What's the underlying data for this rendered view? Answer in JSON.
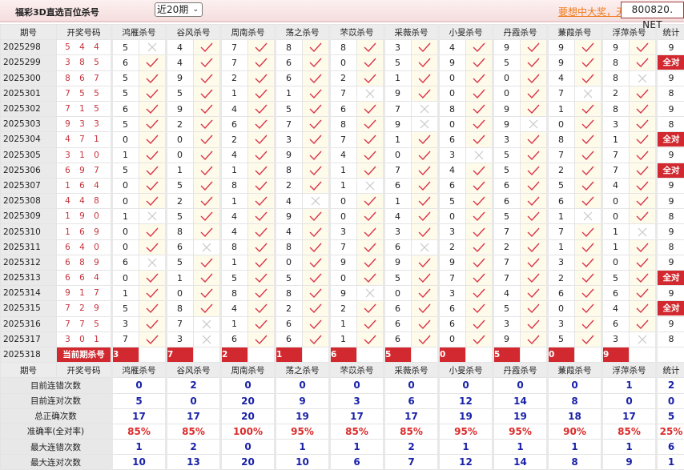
{
  "header": {
    "title": "福彩3D直选百位杀号",
    "period_select": "近20期",
    "promo_link": "要想中大奖，天",
    "brand": "800820. NET"
  },
  "columns": {
    "period": "期号",
    "draw": "开奖号码",
    "killers": [
      "鸿雁杀号",
      "谷风杀号",
      "周南杀号",
      "荡之杀号",
      "芣苡杀号",
      "采薇杀号",
      "小旻杀号",
      "丹霞杀号",
      "蒹葭杀号",
      "浮萍杀号"
    ],
    "stat": "统计"
  },
  "icons": {
    "correct": "check-icon",
    "wrong": "x-icon"
  },
  "colors": {
    "check": "#d9344a",
    "wrong": "#c8c8c8",
    "badge": "#d1292f",
    "stat_value": "#1a22a8",
    "percent": "#dc2a2a"
  },
  "rows": [
    {
      "period": "2025298",
      "draw": "5 4 4",
      "kills": [
        5,
        4,
        7,
        8,
        8,
        3,
        4,
        9,
        9,
        9
      ],
      "ok": [
        false,
        true,
        true,
        true,
        true,
        true,
        true,
        true,
        true,
        true
      ],
      "stat": "9"
    },
    {
      "period": "2025299",
      "draw": "3 8 5",
      "kills": [
        6,
        4,
        7,
        6,
        0,
        5,
        9,
        5,
        9,
        8
      ],
      "ok": [
        true,
        true,
        true,
        true,
        true,
        true,
        true,
        true,
        true,
        true
      ],
      "stat": "全对"
    },
    {
      "period": "2025300",
      "draw": "8 6 7",
      "kills": [
        5,
        9,
        2,
        6,
        2,
        1,
        0,
        0,
        4,
        8
      ],
      "ok": [
        true,
        true,
        true,
        true,
        true,
        true,
        true,
        true,
        true,
        false
      ],
      "stat": "9"
    },
    {
      "period": "2025301",
      "draw": "7 5 5",
      "kills": [
        5,
        5,
        1,
        1,
        7,
        9,
        0,
        0,
        7,
        2
      ],
      "ok": [
        true,
        true,
        true,
        true,
        false,
        true,
        true,
        true,
        false,
        true
      ],
      "stat": "8"
    },
    {
      "period": "2025302",
      "draw": "7 1 5",
      "kills": [
        6,
        9,
        4,
        5,
        6,
        7,
        8,
        9,
        1,
        8
      ],
      "ok": [
        true,
        true,
        true,
        true,
        true,
        false,
        true,
        true,
        true,
        true
      ],
      "stat": "9"
    },
    {
      "period": "2025303",
      "draw": "9 3 3",
      "kills": [
        5,
        2,
        6,
        7,
        8,
        9,
        0,
        9,
        0,
        3
      ],
      "ok": [
        true,
        true,
        true,
        true,
        true,
        false,
        true,
        false,
        true,
        true
      ],
      "stat": "8"
    },
    {
      "period": "2025304",
      "draw": "4 7 1",
      "kills": [
        0,
        0,
        2,
        3,
        7,
        1,
        6,
        3,
        8,
        1
      ],
      "ok": [
        true,
        true,
        true,
        true,
        true,
        true,
        true,
        true,
        true,
        true
      ],
      "stat": "全对"
    },
    {
      "period": "2025305",
      "draw": "3 1 0",
      "kills": [
        1,
        0,
        4,
        9,
        4,
        0,
        3,
        5,
        7,
        7
      ],
      "ok": [
        true,
        true,
        true,
        true,
        true,
        true,
        false,
        true,
        true,
        true
      ],
      "stat": "9"
    },
    {
      "period": "2025306",
      "draw": "6 9 7",
      "kills": [
        5,
        1,
        1,
        8,
        1,
        7,
        4,
        5,
        2,
        7
      ],
      "ok": [
        true,
        true,
        true,
        true,
        true,
        true,
        true,
        true,
        true,
        true
      ],
      "stat": "全对"
    },
    {
      "period": "2025307",
      "draw": "1 6 4",
      "kills": [
        0,
        5,
        8,
        2,
        1,
        6,
        6,
        6,
        5,
        4
      ],
      "ok": [
        true,
        true,
        true,
        true,
        false,
        true,
        true,
        true,
        true,
        true
      ],
      "stat": "9"
    },
    {
      "period": "2025308",
      "draw": "4 4 8",
      "kills": [
        0,
        2,
        1,
        4,
        0,
        1,
        5,
        6,
        6,
        0
      ],
      "ok": [
        true,
        true,
        true,
        false,
        true,
        true,
        true,
        true,
        true,
        true
      ],
      "stat": "9"
    },
    {
      "period": "2025309",
      "draw": "1 9 0",
      "kills": [
        1,
        5,
        4,
        9,
        0,
        4,
        0,
        5,
        1,
        0
      ],
      "ok": [
        false,
        true,
        true,
        true,
        true,
        true,
        true,
        true,
        false,
        true
      ],
      "stat": "8"
    },
    {
      "period": "2025310",
      "draw": "1 6 9",
      "kills": [
        0,
        8,
        4,
        4,
        3,
        3,
        3,
        7,
        7,
        1
      ],
      "ok": [
        true,
        true,
        true,
        true,
        true,
        true,
        true,
        true,
        true,
        false
      ],
      "stat": "9"
    },
    {
      "period": "2025311",
      "draw": "6 4 0",
      "kills": [
        0,
        6,
        8,
        8,
        7,
        6,
        2,
        2,
        1,
        1
      ],
      "ok": [
        true,
        false,
        true,
        true,
        true,
        false,
        true,
        true,
        true,
        true
      ],
      "stat": "8"
    },
    {
      "period": "2025312",
      "draw": "6 8 9",
      "kills": [
        6,
        5,
        1,
        0,
        9,
        9,
        9,
        7,
        3,
        0
      ],
      "ok": [
        false,
        true,
        true,
        true,
        true,
        true,
        true,
        true,
        true,
        true
      ],
      "stat": "9"
    },
    {
      "period": "2025313",
      "draw": "6 6 4",
      "kills": [
        0,
        1,
        5,
        5,
        0,
        5,
        7,
        7,
        2,
        5
      ],
      "ok": [
        true,
        true,
        true,
        true,
        true,
        true,
        true,
        true,
        true,
        true
      ],
      "stat": "全对"
    },
    {
      "period": "2025314",
      "draw": "9 1 7",
      "kills": [
        1,
        0,
        8,
        8,
        9,
        0,
        3,
        4,
        6,
        6
      ],
      "ok": [
        true,
        true,
        true,
        true,
        false,
        true,
        true,
        true,
        true,
        true
      ],
      "stat": "9"
    },
    {
      "period": "2025315",
      "draw": "7 2 9",
      "kills": [
        5,
        8,
        4,
        2,
        2,
        6,
        6,
        5,
        0,
        4
      ],
      "ok": [
        true,
        true,
        true,
        true,
        true,
        true,
        true,
        true,
        true,
        true
      ],
      "stat": "全对"
    },
    {
      "period": "2025316",
      "draw": "7 7 5",
      "kills": [
        3,
        7,
        1,
        6,
        1,
        6,
        6,
        3,
        3,
        6
      ],
      "ok": [
        true,
        false,
        true,
        true,
        true,
        true,
        true,
        true,
        true,
        true
      ],
      "stat": "9"
    },
    {
      "period": "2025317",
      "draw": "3 0 1",
      "kills": [
        7,
        3,
        6,
        6,
        1,
        6,
        0,
        9,
        5,
        3
      ],
      "ok": [
        true,
        false,
        true,
        true,
        true,
        true,
        true,
        true,
        true,
        false
      ],
      "stat": "8"
    }
  ],
  "current": {
    "period": "2025318",
    "label": "当前期杀号",
    "kills": [
      3,
      7,
      2,
      1,
      6,
      5,
      0,
      5,
      0,
      9
    ]
  },
  "stats": [
    {
      "label": "目前连错次数",
      "values": [
        "0",
        "2",
        "0",
        "0",
        "0",
        "0",
        "0",
        "0",
        "0",
        "1",
        "2"
      ]
    },
    {
      "label": "目前连对次数",
      "values": [
        "5",
        "0",
        "20",
        "9",
        "3",
        "6",
        "12",
        "14",
        "8",
        "0",
        "0"
      ]
    },
    {
      "label": "总正确次数",
      "values": [
        "17",
        "17",
        "20",
        "19",
        "17",
        "17",
        "19",
        "19",
        "18",
        "17",
        "5"
      ]
    },
    {
      "label": "准确率(全对率)",
      "values": [
        "85%",
        "85%",
        "100%",
        "95%",
        "85%",
        "85%",
        "95%",
        "95%",
        "90%",
        "85%",
        "25%"
      ],
      "percent": true
    },
    {
      "label": "最大连错次数",
      "values": [
        "1",
        "2",
        "0",
        "1",
        "1",
        "2",
        "1",
        "1",
        "1",
        "1",
        "6"
      ]
    },
    {
      "label": "最大连对次数",
      "values": [
        "10",
        "13",
        "20",
        "10",
        "6",
        "7",
        "12",
        "14",
        "8",
        "9",
        "1"
      ]
    }
  ]
}
